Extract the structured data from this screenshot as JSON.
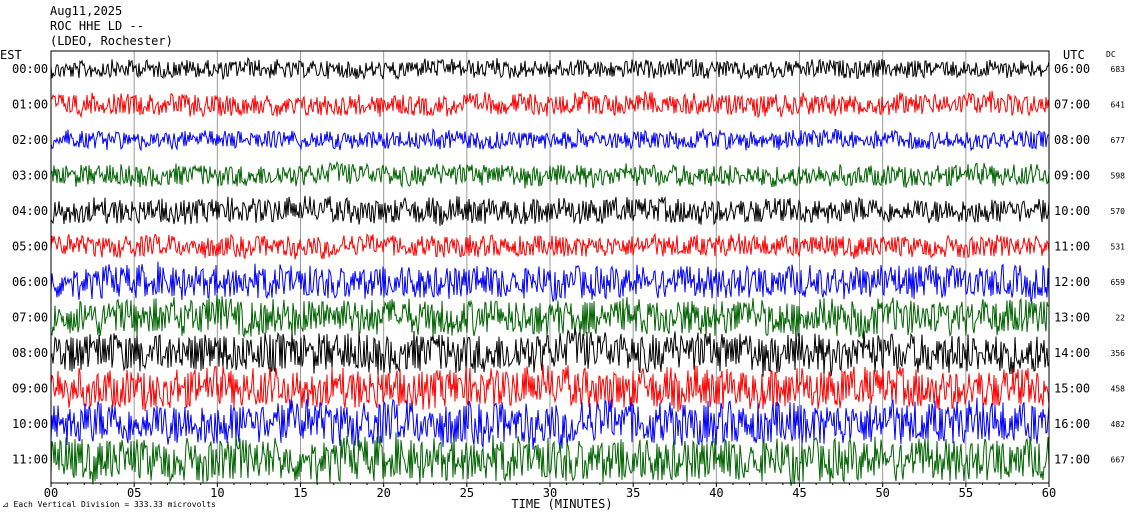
{
  "header": {
    "date": "Aug11,2025",
    "station": "ROC HHE LD --",
    "network": "(LDEO, Rochester)"
  },
  "labels": {
    "left_zone": "EST",
    "right_zone": "UTC",
    "dc_header": "DC",
    "xlabel": "TIME (MINUTES)",
    "footnote_prefix": "Each Vertical Division",
    "footnote_value": "333.33 microvolts"
  },
  "chart_data": {
    "type": "line",
    "title": "ROC HHE LD --",
    "xlabel": "TIME (MINUTES)",
    "ylabel": "",
    "xlim": [
      0,
      60
    ],
    "x_ticks": [
      "00",
      "05",
      "10",
      "15",
      "20",
      "25",
      "30",
      "35",
      "40",
      "45",
      "50",
      "55",
      "60"
    ],
    "grid": true,
    "rows": [
      {
        "est": "00:00",
        "utc": "06:00",
        "dc": "683",
        "color": "#000000",
        "amplitude": 0.25
      },
      {
        "est": "01:00",
        "utc": "07:00",
        "dc": "641",
        "color": "#ff0000",
        "amplitude": 0.3
      },
      {
        "est": "02:00",
        "utc": "08:00",
        "dc": "677",
        "color": "#0000ff",
        "amplitude": 0.25
      },
      {
        "est": "03:00",
        "utc": "09:00",
        "dc": "598",
        "color": "#006400",
        "amplitude": 0.3
      },
      {
        "est": "04:00",
        "utc": "10:00",
        "dc": "570",
        "color": "#000000",
        "amplitude": 0.35
      },
      {
        "est": "05:00",
        "utc": "11:00",
        "dc": "531",
        "color": "#ff0000",
        "amplitude": 0.3
      },
      {
        "est": "06:00",
        "utc": "12:00",
        "dc": "659",
        "color": "#0000ff",
        "amplitude": 0.45
      },
      {
        "est": "07:00",
        "utc": "13:00",
        "dc": "22",
        "color": "#006400",
        "amplitude": 0.5
      },
      {
        "est": "08:00",
        "utc": "14:00",
        "dc": "356",
        "color": "#000000",
        "amplitude": 0.55
      },
      {
        "est": "09:00",
        "utc": "15:00",
        "dc": "458",
        "color": "#ff0000",
        "amplitude": 0.55
      },
      {
        "est": "10:00",
        "utc": "16:00",
        "dc": "482",
        "color": "#0000ff",
        "amplitude": 0.6
      },
      {
        "est": "11:00",
        "utc": "17:00",
        "dc": "667",
        "color": "#006400",
        "amplitude": 0.6
      }
    ]
  }
}
